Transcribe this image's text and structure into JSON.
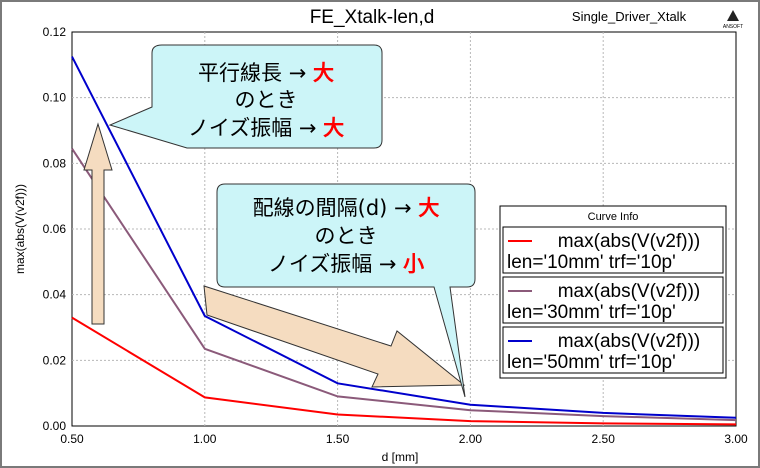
{
  "chart_data": {
    "type": "line",
    "title": "FE_Xtalk-len,d",
    "subtitle": "Single_Driver_Xtalk",
    "logo_text": "ANSOFT",
    "xlabel": "d [mm]",
    "ylabel": "max(abs(V(v2f)))",
    "xlim": [
      0.5,
      3.0
    ],
    "ylim": [
      0.0,
      0.12
    ],
    "x_ticks": [
      "0.50",
      "1.00",
      "1.50",
      "2.00",
      "2.50",
      "3.00"
    ],
    "y_ticks": [
      "0.00",
      "0.02",
      "0.04",
      "0.06",
      "0.08",
      "0.10",
      "0.12"
    ],
    "grid": true,
    "legend": {
      "title": "Curve Info",
      "placement": "right",
      "entries": [
        {
          "line1": "max(abs(V(v2f)))",
          "line2": "len='10mm' trf='10p'",
          "color": "#ff0000"
        },
        {
          "line1": "max(abs(V(v2f)))",
          "line2": "len='30mm' trf='10p'",
          "color": "#8b5a7a"
        },
        {
          "line1": "max(abs(V(v2f)))",
          "line2": "len='50mm' trf='10p'",
          "color": "#0000cc"
        }
      ]
    },
    "series": [
      {
        "color": "#ff0000",
        "x": [
          0.5,
          1.0,
          1.5,
          2.0,
          2.5,
          3.0
        ],
        "values": [
          0.033,
          0.0087,
          0.0035,
          0.0015,
          0.0008,
          0.0005
        ]
      },
      {
        "color": "#8b5a7a",
        "x": [
          0.5,
          1.0,
          1.5,
          2.0,
          2.5,
          3.0
        ],
        "values": [
          0.0845,
          0.0235,
          0.009,
          0.0048,
          0.003,
          0.0018
        ]
      },
      {
        "color": "#0000cc",
        "x": [
          0.5,
          1.0,
          1.5,
          2.0,
          2.5,
          3.0
        ],
        "values": [
          0.1125,
          0.0335,
          0.013,
          0.0065,
          0.004,
          0.0025
        ]
      }
    ]
  },
  "annotations": {
    "callout1": {
      "line1_prefix": "平行線長 → ",
      "line1_em": "大",
      "line2": "のとき",
      "line3_prefix": "ノイズ振幅 → ",
      "line3_em": "大"
    },
    "callout2": {
      "line1_prefix": "配線の間隔(d) → ",
      "line1_em": "大",
      "line2": "のとき",
      "line3_prefix": "ノイズ振幅 → ",
      "line3_em": "小"
    },
    "emphasis_color": "#ff0000",
    "callout_fill": "#ccf5f8",
    "arrow_fill": "#f5dcc0"
  }
}
